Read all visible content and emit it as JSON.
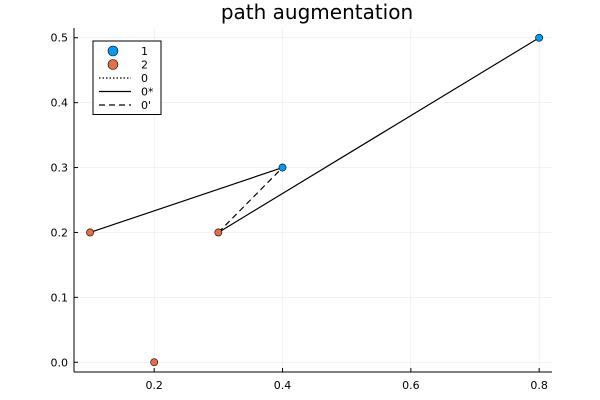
{
  "chart_data": {
    "type": "scatter",
    "title": "path augmentation",
    "xlabel": "",
    "ylabel": "",
    "xlim": [
      0.075,
      0.82
    ],
    "ylim": [
      -0.015,
      0.515
    ],
    "grid": true,
    "legend_position": "top-left",
    "x_ticks": [
      0.2,
      0.4,
      0.6,
      0.8
    ],
    "y_ticks": [
      0.0,
      0.1,
      0.2,
      0.3,
      0.4,
      0.5
    ],
    "x_tick_labels": [
      "0.2",
      "0.4",
      "0.6",
      "0.8"
    ],
    "y_tick_labels": [
      "0.0",
      "0.1",
      "0.2",
      "0.3",
      "0.4",
      "0.5"
    ],
    "series": [
      {
        "name": "1",
        "kind": "points",
        "color": "#009AFA",
        "points": [
          [
            0.4,
            0.3
          ],
          [
            0.8,
            0.5
          ]
        ]
      },
      {
        "name": "2",
        "kind": "points",
        "color": "#E36F47",
        "points": [
          [
            0.1,
            0.2
          ],
          [
            0.3,
            0.2
          ],
          [
            0.2,
            0.0
          ]
        ]
      },
      {
        "name": "0",
        "kind": "line",
        "style": "dotted",
        "color": "#000000",
        "segments": []
      },
      {
        "name": "0*",
        "kind": "line",
        "style": "solid",
        "color": "#000000",
        "segments": [
          [
            [
              0.1,
              0.2
            ],
            [
              0.4,
              0.3
            ]
          ],
          [
            [
              0.3,
              0.2
            ],
            [
              0.8,
              0.5
            ]
          ]
        ]
      },
      {
        "name": "0'",
        "kind": "line",
        "style": "dashed",
        "color": "#000000",
        "segments": [
          [
            [
              0.3,
              0.2
            ],
            [
              0.4,
              0.3
            ]
          ]
        ]
      }
    ]
  }
}
